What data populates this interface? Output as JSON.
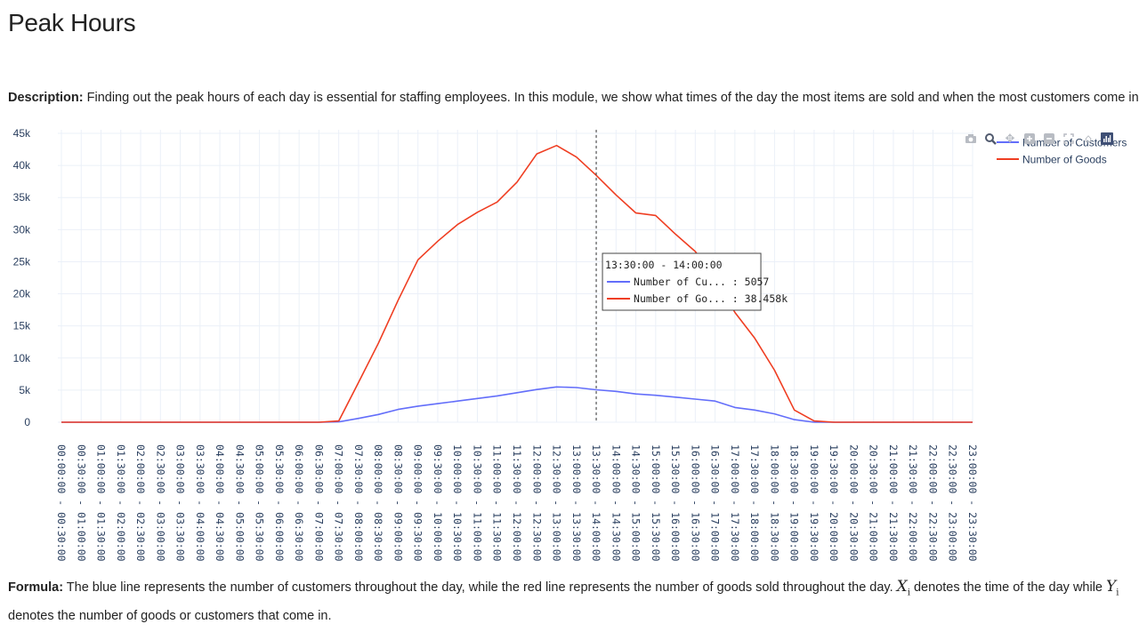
{
  "page": {
    "title": "Peak Hours",
    "description_label": "Description:",
    "description_text": " Finding out the peak hours of each day is essential for staffing employees. In this module, we show what times of the day the most items are sold and when the most customers come in.",
    "formula_label": "Formula:",
    "formula_text_1": " The blue line represents the number of customers throughout the day, while the red line represents the number of goods sold throughout the day. ",
    "formula_var_x": "X",
    "formula_var_y": "Y",
    "formula_sub": "i",
    "formula_text_2": " denotes the time of the day while ",
    "formula_text_3": " denotes the number of goods or customers that come in."
  },
  "modebar": {
    "icons": [
      "camera-icon",
      "zoom-icon",
      "pan-icon",
      "zoom-in-icon",
      "zoom-out-icon",
      "autoscale-icon",
      "reset-axes-icon",
      "plotly-logo-icon"
    ]
  },
  "chart_data": {
    "type": "line",
    "categories": [
      "00:00:00 - 00:30:00",
      "00:30:00 - 01:00:00",
      "01:00:00 - 01:30:00",
      "01:30:00 - 02:00:00",
      "02:00:00 - 02:30:00",
      "02:30:00 - 03:00:00",
      "03:00:00 - 03:30:00",
      "03:30:00 - 04:00:00",
      "04:00:00 - 04:30:00",
      "04:30:00 - 05:00:00",
      "05:00:00 - 05:30:00",
      "05:30:00 - 06:00:00",
      "06:00:00 - 06:30:00",
      "06:30:00 - 07:00:00",
      "07:00:00 - 07:30:00",
      "07:30:00 - 08:00:00",
      "08:00:00 - 08:30:00",
      "08:30:00 - 09:00:00",
      "09:00:00 - 09:30:00",
      "09:30:00 - 10:00:00",
      "10:00:00 - 10:30:00",
      "10:30:00 - 11:00:00",
      "11:00:00 - 11:30:00",
      "11:30:00 - 12:00:00",
      "12:00:00 - 12:30:00",
      "12:30:00 - 13:00:00",
      "13:00:00 - 13:30:00",
      "13:30:00 - 14:00:00",
      "14:00:00 - 14:30:00",
      "14:30:00 - 15:00:00",
      "15:00:00 - 15:30:00",
      "15:30:00 - 16:00:00",
      "16:00:00 - 16:30:00",
      "16:30:00 - 17:00:00",
      "17:00:00 - 17:30:00",
      "17:30:00 - 18:00:00",
      "18:00:00 - 18:30:00",
      "18:30:00 - 19:00:00",
      "19:00:00 - 19:30:00",
      "19:30:00 - 20:00:00",
      "20:00:00 - 20:30:00",
      "20:30:00 - 21:00:00",
      "21:00:00 - 21:30:00",
      "21:30:00 - 22:00:00",
      "22:00:00 - 22:30:00",
      "22:30:00 - 23:00:00",
      "23:00:00 - 23:30:00"
    ],
    "series": [
      {
        "name": "Number of Customers",
        "color": "#636efa",
        "values": [
          0,
          0,
          0,
          0,
          0,
          0,
          0,
          0,
          0,
          0,
          0,
          0,
          0,
          0,
          50,
          600,
          1200,
          2000,
          2500,
          2900,
          3300,
          3700,
          4100,
          4600,
          5100,
          5500,
          5400,
          5057,
          4800,
          4400,
          4200,
          3900,
          3600,
          3300,
          2300,
          1900,
          1300,
          400,
          0,
          0,
          0,
          0,
          0,
          0,
          0,
          0,
          0
        ]
      },
      {
        "name": "Number of Goods",
        "color": "#ef3e22",
        "values": [
          0,
          0,
          0,
          0,
          0,
          0,
          0,
          0,
          0,
          0,
          0,
          0,
          0,
          0,
          200,
          6200,
          12300,
          19000,
          25300,
          28200,
          30800,
          32700,
          34300,
          37400,
          41800,
          43100,
          41300,
          38458,
          35400,
          32600,
          32200,
          29300,
          26600,
          22400,
          17100,
          13100,
          8100,
          1900,
          200,
          0,
          0,
          0,
          0,
          0,
          0,
          0,
          0
        ]
      }
    ],
    "ylim": [
      0,
      45000
    ],
    "y_ticks": [
      {
        "value": 0,
        "label": "0"
      },
      {
        "value": 5000,
        "label": "5k"
      },
      {
        "value": 10000,
        "label": "10k"
      },
      {
        "value": 15000,
        "label": "15k"
      },
      {
        "value": 20000,
        "label": "20k"
      },
      {
        "value": 25000,
        "label": "25k"
      },
      {
        "value": 30000,
        "label": "30k"
      },
      {
        "value": 35000,
        "label": "35k"
      },
      {
        "value": 40000,
        "label": "40k"
      },
      {
        "value": 45000,
        "label": "45k"
      }
    ],
    "grid": true,
    "legend": {
      "position": "top-right",
      "entries": [
        "Number of Customers",
        "Number of Goods"
      ]
    },
    "hover": {
      "index": 27,
      "title": "13:30:00 - 14:00:00",
      "rows": [
        {
          "label": "Number of Cu... : 5057",
          "color": "#636efa"
        },
        {
          "label": "Number of Go... : 38.458k",
          "color": "#ef3e22"
        }
      ]
    }
  }
}
